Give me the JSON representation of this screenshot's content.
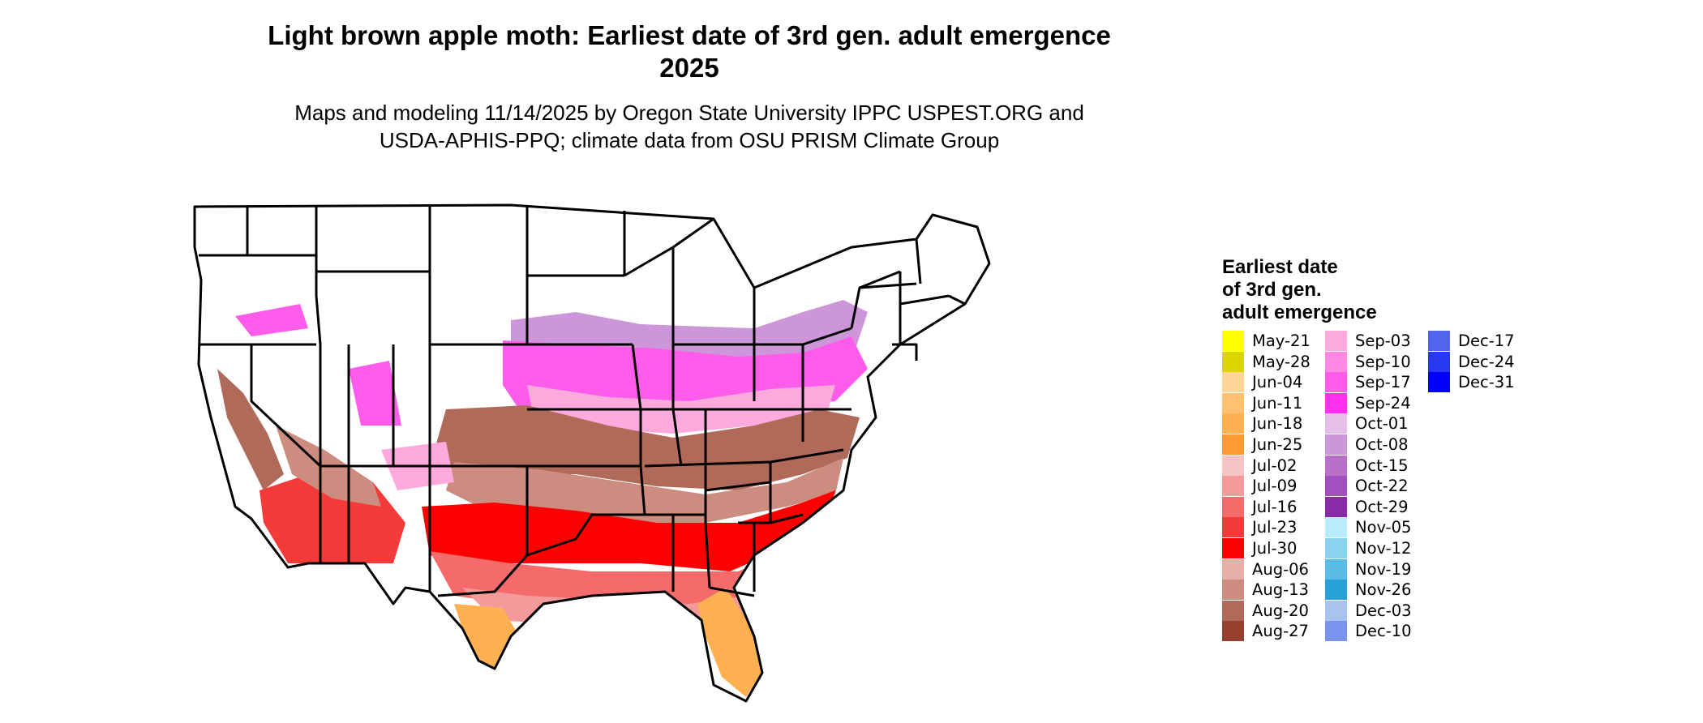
{
  "title": [
    "Light brown apple moth: Earliest date of 3rd gen. adult emergence",
    "2025"
  ],
  "subtitle": [
    "Maps and modeling 11/14/2025 by Oregon State University IPPC USPEST.ORG and",
    "USDA-APHIS-PPQ; climate data from OSU PRISM Climate Group"
  ],
  "legend": {
    "title": [
      "Earliest date",
      "of 3rd gen.",
      "adult emergence"
    ],
    "items": [
      {
        "label": "May-21",
        "color": "#ffff00"
      },
      {
        "label": "May-28",
        "color": "#dcd400"
      },
      {
        "label": "Jun-04",
        "color": "#ffd699"
      },
      {
        "label": "Jun-11",
        "color": "#ffc070"
      },
      {
        "label": "Jun-18",
        "color": "#ffb050"
      },
      {
        "label": "Jun-25",
        "color": "#ff9a33"
      },
      {
        "label": "Jul-02",
        "color": "#f5c4c4"
      },
      {
        "label": "Jul-09",
        "color": "#f59a9a"
      },
      {
        "label": "Jul-16",
        "color": "#f56a6a"
      },
      {
        "label": "Jul-23",
        "color": "#f53a3a"
      },
      {
        "label": "Jul-30",
        "color": "#ff0000"
      },
      {
        "label": "Aug-06",
        "color": "#e6b0a8"
      },
      {
        "label": "Aug-13",
        "color": "#cc8c80"
      },
      {
        "label": "Aug-20",
        "color": "#b06a5a"
      },
      {
        "label": "Aug-27",
        "color": "#964030"
      },
      {
        "label": "Sep-03",
        "color": "#ffaadd"
      },
      {
        "label": "Sep-10",
        "color": "#ff88e4"
      },
      {
        "label": "Sep-17",
        "color": "#ff5cec"
      },
      {
        "label": "Sep-24",
        "color": "#ff30f0"
      },
      {
        "label": "Oct-01",
        "color": "#e4c0e8"
      },
      {
        "label": "Oct-08",
        "color": "#cc96d8"
      },
      {
        "label": "Oct-15",
        "color": "#b870c8"
      },
      {
        "label": "Oct-22",
        "color": "#a050c0"
      },
      {
        "label": "Oct-29",
        "color": "#8a2aa8"
      },
      {
        "label": "Nov-05",
        "color": "#b8ecfc"
      },
      {
        "label": "Nov-12",
        "color": "#88d4f0"
      },
      {
        "label": "Nov-19",
        "color": "#5cbce8"
      },
      {
        "label": "Nov-26",
        "color": "#28a0d8"
      },
      {
        "label": "Dec-03",
        "color": "#a8c4ec"
      },
      {
        "label": "Dec-10",
        "color": "#7894ec"
      },
      {
        "label": "Dec-17",
        "color": "#5064ec"
      },
      {
        "label": "Dec-24",
        "color": "#2838f0"
      },
      {
        "label": "Dec-31",
        "color": "#0000ff"
      }
    ]
  }
}
